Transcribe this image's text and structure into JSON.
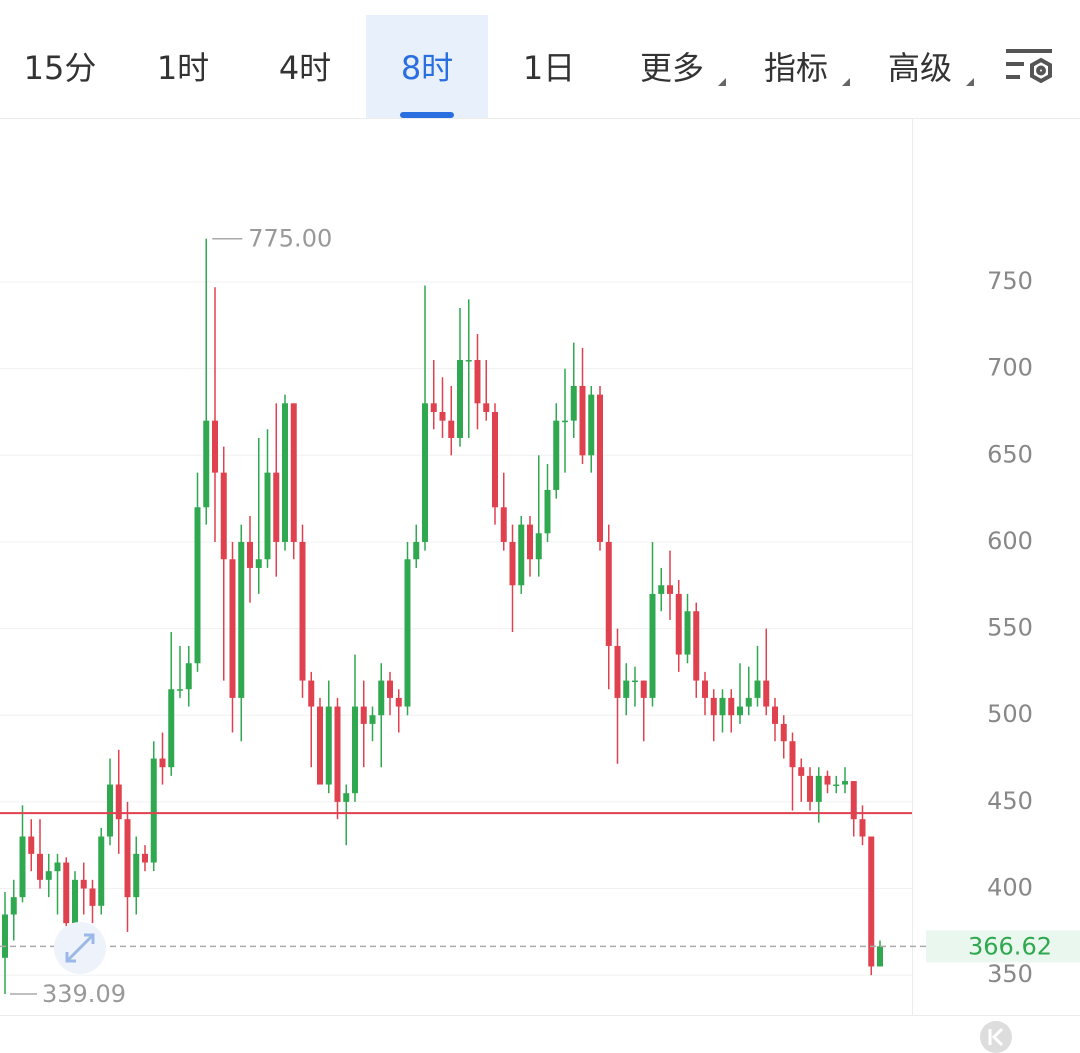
{
  "tabs": [
    "15分",
    "1时",
    "4时",
    "8时",
    "1日",
    "更多",
    "指标",
    "高级"
  ],
  "active_tab": 3,
  "chart_data": {
    "type": "candlestick",
    "open": [
      360,
      385,
      395,
      430,
      420,
      405,
      410,
      415,
      380,
      405,
      400,
      390,
      430,
      460,
      440,
      395,
      420,
      415,
      475,
      470,
      515,
      515,
      530,
      620,
      670,
      640,
      590,
      510,
      600,
      585,
      590,
      640,
      600,
      680,
      600,
      520,
      505,
      460,
      505,
      450,
      455,
      505,
      495,
      500,
      520,
      510,
      505,
      590,
      600,
      680,
      675,
      670,
      660,
      705,
      705,
      680,
      675,
      620,
      600,
      575,
      610,
      590,
      605,
      630,
      670,
      670,
      690,
      650,
      685,
      600,
      540,
      510,
      520,
      520,
      510,
      570,
      575,
      570,
      535,
      560,
      520,
      510,
      500,
      510,
      500,
      505,
      510,
      520,
      505,
      495,
      485,
      470,
      465,
      450,
      465,
      460,
      460,
      462,
      440,
      430,
      355
    ],
    "high": [
      398,
      405,
      448,
      440,
      440,
      420,
      420,
      418,
      410,
      415,
      405,
      435,
      475,
      480,
      450,
      430,
      425,
      485,
      490,
      548,
      540,
      540,
      640,
      775,
      747,
      655,
      600,
      610,
      615,
      660,
      665,
      680,
      685,
      680,
      610,
      525,
      510,
      520,
      510,
      460,
      535,
      520,
      505,
      530,
      525,
      515,
      600,
      610,
      748,
      705,
      695,
      690,
      735,
      740,
      720,
      705,
      680,
      640,
      610,
      615,
      615,
      650,
      645,
      680,
      700,
      715,
      712,
      690,
      690,
      610,
      550,
      530,
      528,
      520,
      600,
      585,
      595,
      578,
      570,
      565,
      525,
      515,
      515,
      515,
      530,
      528,
      540,
      550,
      510,
      500,
      490,
      475,
      470,
      470,
      468,
      465,
      470,
      462,
      448,
      430,
      370
    ],
    "low": [
      339.09,
      370,
      392,
      410,
      400,
      395,
      385,
      370,
      378,
      385,
      380,
      385,
      425,
      420,
      375,
      385,
      410,
      410,
      460,
      465,
      510,
      505,
      525,
      610,
      600,
      520,
      490,
      485,
      565,
      570,
      585,
      580,
      595,
      590,
      510,
      470,
      460,
      455,
      440,
      425,
      450,
      470,
      485,
      470,
      500,
      490,
      500,
      585,
      595,
      665,
      660,
      650,
      655,
      660,
      665,
      670,
      610,
      595,
      548,
      570,
      580,
      580,
      600,
      625,
      640,
      660,
      645,
      640,
      595,
      515,
      472,
      500,
      505,
      485,
      505,
      560,
      555,
      525,
      530,
      510,
      500,
      485,
      490,
      490,
      495,
      500,
      505,
      500,
      485,
      475,
      445,
      450,
      445,
      438,
      455,
      455,
      455,
      430,
      425,
      350,
      355
    ],
    "close": [
      385,
      395,
      430,
      420,
      405,
      410,
      415,
      380,
      405,
      400,
      390,
      430,
      460,
      440,
      395,
      420,
      415,
      475,
      470,
      515,
      515,
      530,
      620,
      670,
      640,
      590,
      510,
      600,
      585,
      590,
      640,
      600,
      680,
      600,
      520,
      505,
      460,
      505,
      450,
      455,
      505,
      495,
      500,
      520,
      510,
      505,
      590,
      600,
      680,
      675,
      670,
      660,
      705,
      705,
      680,
      675,
      620,
      600,
      575,
      610,
      590,
      605,
      630,
      670,
      670,
      690,
      650,
      685,
      600,
      540,
      510,
      520,
      520,
      510,
      570,
      575,
      570,
      535,
      560,
      520,
      510,
      500,
      510,
      500,
      505,
      510,
      520,
      505,
      495,
      485,
      470,
      465,
      450,
      465,
      460,
      460,
      462,
      440,
      430,
      355,
      366.62
    ],
    "up_color": "#2fa84f",
    "down_color": "#e0414f",
    "ylim": [
      327,
      843.5
    ],
    "yticks": [
      350,
      400,
      450,
      500,
      550,
      600,
      650,
      700,
      750
    ],
    "grid": true,
    "max_annotation": {
      "value": 775,
      "label": "775.00"
    },
    "min_annotation": {
      "value": 339.09,
      "label": "339.09"
    },
    "reference_line": {
      "value": 443.5,
      "color": "#e0414f"
    },
    "last_price": 366.62
  }
}
